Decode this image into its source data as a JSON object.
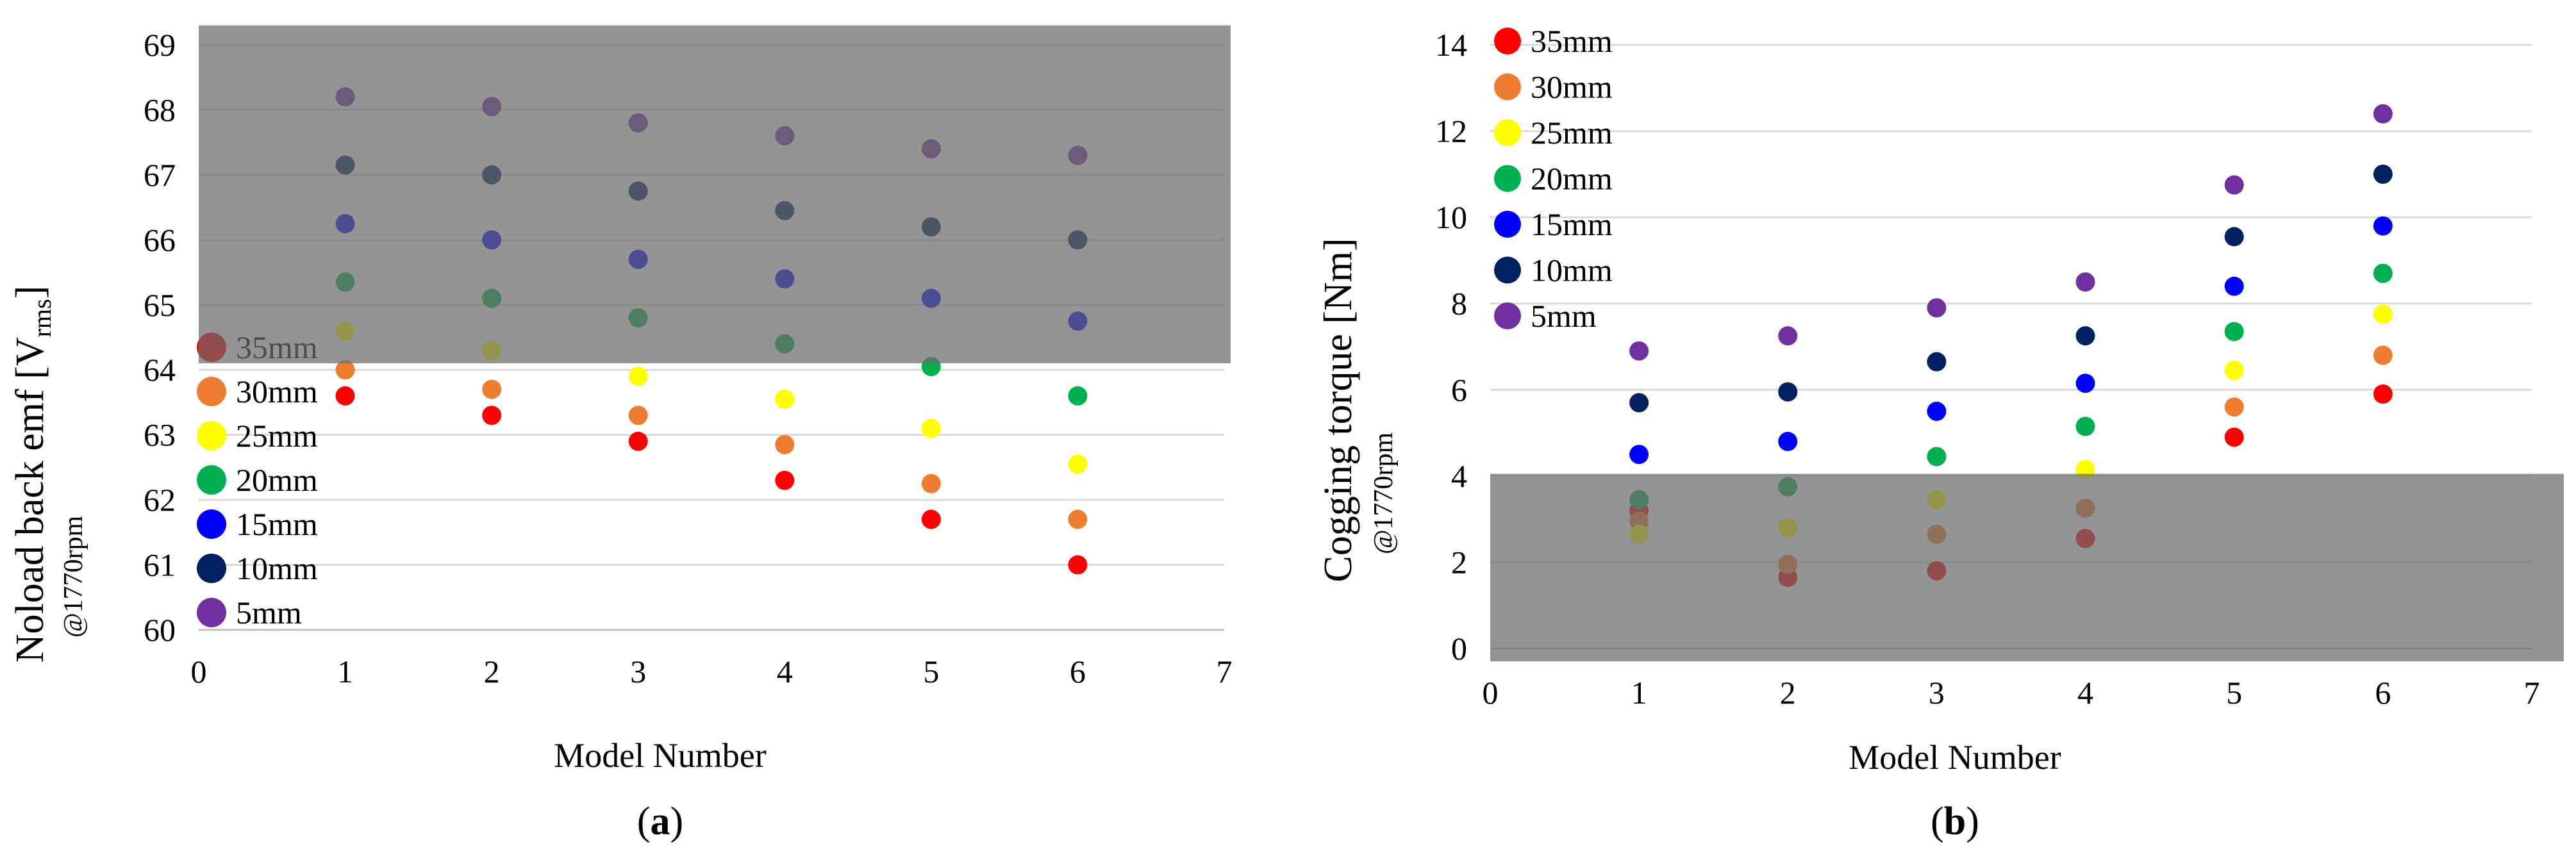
{
  "chart_data": [
    {
      "type": "scatter",
      "panel_label": "a",
      "title": "",
      "xlabel": "Model Number",
      "ylabel_main": "Noload back emf [V",
      "ylabel_sub": "rms",
      "ylabel_close": "]",
      "ylabel_note": "@1770rpm",
      "xlim": [
        0,
        7
      ],
      "ylim": [
        60,
        69
      ],
      "xticks": [
        0,
        1,
        2,
        3,
        4,
        5,
        6,
        7
      ],
      "yticks": [
        60,
        61,
        62,
        63,
        64,
        65,
        66,
        67,
        68,
        69
      ],
      "shaded_region": [
        64.1,
        69.3
      ],
      "legend_placement": "bottom-left",
      "series": [
        {
          "name": "35mm",
          "color": "#ff0000",
          "x": [
            1,
            2,
            3,
            4,
            5,
            6
          ],
          "y": [
            63.6,
            63.3,
            62.9,
            62.3,
            61.7,
            61.0
          ]
        },
        {
          "name": "30mm",
          "color": "#ed7d31",
          "x": [
            1,
            2,
            3,
            4,
            5,
            6
          ],
          "y": [
            64.0,
            63.7,
            63.3,
            62.85,
            62.25,
            61.7
          ]
        },
        {
          "name": "25mm",
          "color": "#ffff00",
          "x": [
            1,
            2,
            3,
            4,
            5,
            6
          ],
          "y": [
            64.6,
            64.3,
            63.9,
            63.55,
            63.1,
            62.55
          ]
        },
        {
          "name": "20mm",
          "color": "#00b050",
          "x": [
            1,
            2,
            3,
            4,
            5,
            6
          ],
          "y": [
            65.35,
            65.1,
            64.8,
            64.4,
            64.05,
            63.6
          ]
        },
        {
          "name": "15mm",
          "color": "#0000ff",
          "x": [
            1,
            2,
            3,
            4,
            5,
            6
          ],
          "y": [
            66.25,
            66.0,
            65.7,
            65.4,
            65.1,
            64.75
          ]
        },
        {
          "name": "10mm",
          "color": "#002060",
          "x": [
            1,
            2,
            3,
            4,
            5,
            6
          ],
          "y": [
            67.15,
            67.0,
            66.75,
            66.45,
            66.2,
            66.0
          ]
        },
        {
          "name": "5mm",
          "color": "#7030a0",
          "x": [
            1,
            2,
            3,
            4,
            5,
            6
          ],
          "y": [
            68.2,
            68.05,
            67.8,
            67.6,
            67.4,
            67.3
          ]
        }
      ]
    },
    {
      "type": "scatter",
      "panel_label": "b",
      "title": "",
      "xlabel": "Model Number",
      "ylabel_main": "Cogging torque [Nm]",
      "ylabel_note": "@1770rpm",
      "xlim": [
        0,
        7
      ],
      "ylim": [
        0,
        14
      ],
      "xticks": [
        0,
        1,
        2,
        3,
        4,
        5,
        6,
        7
      ],
      "yticks": [
        0,
        2,
        4,
        6,
        8,
        10,
        12,
        14
      ],
      "shaded_region": [
        -0.3,
        4.05
      ],
      "legend_placement": "top-left",
      "series": [
        {
          "name": "35mm",
          "color": "#ff0000",
          "x": [
            1,
            2,
            3,
            4,
            5,
            6
          ],
          "y": [
            3.2,
            1.65,
            1.8,
            2.55,
            4.9,
            5.9
          ]
        },
        {
          "name": "30mm",
          "color": "#ed7d31",
          "x": [
            1,
            2,
            3,
            4,
            5,
            6
          ],
          "y": [
            2.95,
            1.95,
            2.65,
            3.25,
            5.6,
            6.8
          ]
        },
        {
          "name": "25mm",
          "color": "#ffff00",
          "x": [
            1,
            2,
            3,
            4,
            5,
            6
          ],
          "y": [
            2.65,
            2.8,
            3.45,
            4.15,
            6.45,
            7.75
          ]
        },
        {
          "name": "20mm",
          "color": "#00b050",
          "x": [
            1,
            2,
            3,
            4,
            5,
            6
          ],
          "y": [
            3.45,
            3.75,
            4.45,
            5.15,
            7.35,
            8.7
          ]
        },
        {
          "name": "15mm",
          "color": "#0000ff",
          "x": [
            1,
            2,
            3,
            4,
            5,
            6
          ],
          "y": [
            4.5,
            4.8,
            5.5,
            6.15,
            8.4,
            9.8
          ]
        },
        {
          "name": "10mm",
          "color": "#002060",
          "x": [
            1,
            2,
            3,
            4,
            5,
            6
          ],
          "y": [
            5.7,
            5.95,
            6.65,
            7.25,
            9.55,
            11.0
          ]
        },
        {
          "name": "5mm",
          "color": "#7030a0",
          "x": [
            1,
            2,
            3,
            4,
            5,
            6
          ],
          "y": [
            6.9,
            7.25,
            7.9,
            8.5,
            10.75,
            12.4
          ]
        }
      ]
    }
  ]
}
